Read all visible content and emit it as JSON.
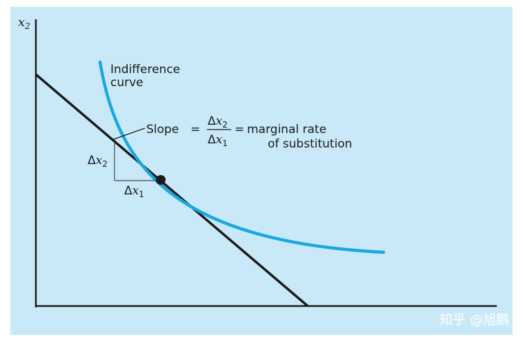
{
  "axes": {
    "y_label_main": "x",
    "y_label_sub": "2"
  },
  "curve_label": {
    "line1": "Indifference",
    "line2": "curve"
  },
  "slope_label": {
    "prefix": "Slope",
    "equals": "=",
    "num_delta": "Δ",
    "num_var": "x",
    "num_sub": "2",
    "den_delta": "Δ",
    "den_var": "x",
    "den_sub": "1",
    "equals2": "=",
    "line1": "marginal rate",
    "line2": "of substitution"
  },
  "delta_x2": {
    "delta": "Δ",
    "var": "x",
    "sub": "2"
  },
  "delta_x1": {
    "delta": "Δ",
    "var": "x",
    "sub": "1"
  },
  "watermark": "知乎 @旭鹏",
  "colors": {
    "background": "#c9e9f8",
    "curve": "#1aa8e0",
    "line": "#1a1a1a"
  }
}
